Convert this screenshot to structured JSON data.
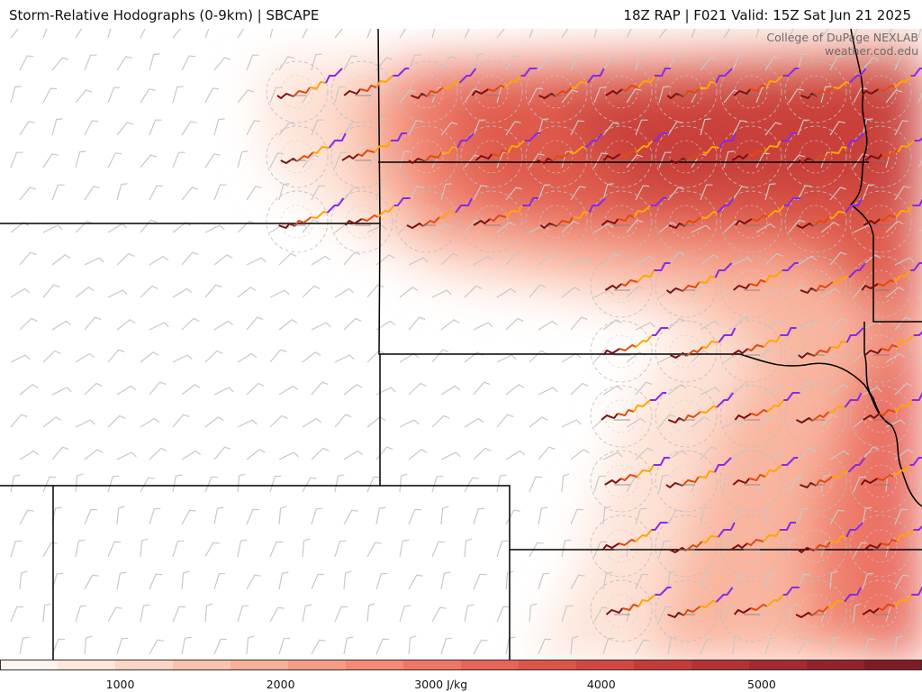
{
  "title": {
    "left": "Storm-Relative Hodographs (0-9km) | SBCAPE",
    "right": "18Z RAP | F021 Valid: 15Z Sat Jun 21 2025"
  },
  "credit": {
    "line1": "College of DuPage NEXLAB",
    "line2": "weather.cod.edu"
  },
  "colorbar": {
    "field": "SBCAPE",
    "units": "J/kg",
    "ticks": [
      {
        "value": 1000,
        "label": "1000"
      },
      {
        "value": 2000,
        "label": "2000"
      },
      {
        "value": 3000,
        "label": "3000 J/kg"
      },
      {
        "value": 4000,
        "label": "4000"
      },
      {
        "value": 5000,
        "label": "5000"
      }
    ],
    "range": [
      250,
      6000
    ],
    "step": 250,
    "colors": [
      "#fff3ee",
      "#fde6dc",
      "#fcd5c4",
      "#fbc3ad",
      "#f9b098",
      "#f79d84",
      "#f48a72",
      "#ef7662",
      "#e86455",
      "#de5449",
      "#d24740",
      "#c43c39",
      "#b53234",
      "#a42a30",
      "#93232c",
      "#7d1c27"
    ]
  },
  "hodograph_colors": {
    "0-1km": "#7d0e0e",
    "1-3km": "#e34a0d",
    "3-6km": "#ffa500",
    "6-9km": "#8a2be2"
  }
}
